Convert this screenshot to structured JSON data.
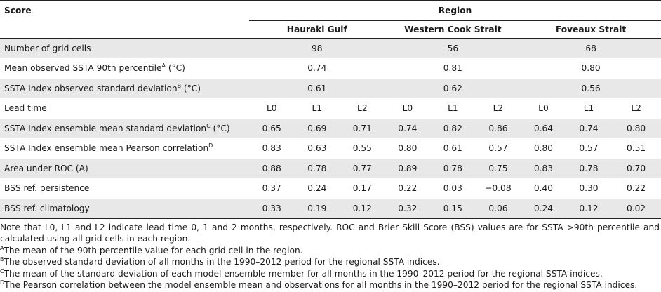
{
  "header": {
    "score": "Score",
    "region": "Region",
    "regions": [
      "Hauraki Gulf",
      "Western Cook Strait",
      "Foveaux Strait"
    ]
  },
  "rows": {
    "grid_cells": {
      "label": "Number of grid cells",
      "values": [
        "98",
        "56",
        "68"
      ]
    },
    "mean_90th": {
      "label": "Mean observed SSTA 90th percentile",
      "sup": "A",
      "unit": " (°C)",
      "values": [
        "0.74",
        "0.81",
        "0.80"
      ]
    },
    "obs_sd": {
      "label": "SSTA Index observed standard deviation",
      "sup": "B",
      "unit": " (°C)",
      "values": [
        "0.61",
        "0.62",
        "0.56"
      ]
    },
    "lead_time": {
      "label": "Lead time",
      "values": [
        "L0",
        "L1",
        "L2",
        "L0",
        "L1",
        "L2",
        "L0",
        "L1",
        "L2"
      ]
    },
    "ens_sd": {
      "label": "SSTA Index ensemble mean standard deviation",
      "sup": "C",
      "unit": " (°C)",
      "values": [
        "0.65",
        "0.69",
        "0.71",
        "0.74",
        "0.82",
        "0.86",
        "0.64",
        "0.74",
        "0.80"
      ]
    },
    "pearson": {
      "label": "SSTA Index ensemble mean Pearson correlation",
      "sup": "D",
      "unit": "",
      "values": [
        "0.83",
        "0.63",
        "0.55",
        "0.80",
        "0.61",
        "0.57",
        "0.80",
        "0.57",
        "0.51"
      ]
    },
    "roc": {
      "label": "Area under ROC (A)",
      "values": [
        "0.88",
        "0.78",
        "0.77",
        "0.89",
        "0.78",
        "0.75",
        "0.83",
        "0.78",
        "0.70"
      ]
    },
    "bss_persist": {
      "label": "BSS ref. persistence",
      "values": [
        "0.37",
        "0.24",
        "0.17",
        "0.22",
        "0.03",
        "−0.08",
        "0.40",
        "0.30",
        "0.22"
      ]
    },
    "bss_clim": {
      "label": "BSS ref. climatology",
      "values": [
        "0.33",
        "0.19",
        "0.12",
        "0.32",
        "0.15",
        "0.06",
        "0.24",
        "0.12",
        "0.02"
      ]
    }
  },
  "notes": {
    "main": "Note that L0, L1 and L2 indicate lead time 0, 1 and 2 months, respectively. ROC and Brier Skill Score (BSS) values are for SSTA >90th percentile and calculated using all grid cells in each region.",
    "a_sup": "A",
    "a": "The mean of the 90th percentile value for each grid cell in the region.",
    "b_sup": "B",
    "b": "The observed standard deviation of all months in the 1990–2012 period for the regional SSTA indices.",
    "c_sup": "C",
    "c": "The mean of the standard deviation of each model ensemble member for all months in the 1990–2012 period for the regional SSTA indices.",
    "d_sup": "D",
    "d": "The Pearson correlation between the model ensemble mean and observations for all months in the 1990–2012 period for the regional SSTA indices."
  }
}
